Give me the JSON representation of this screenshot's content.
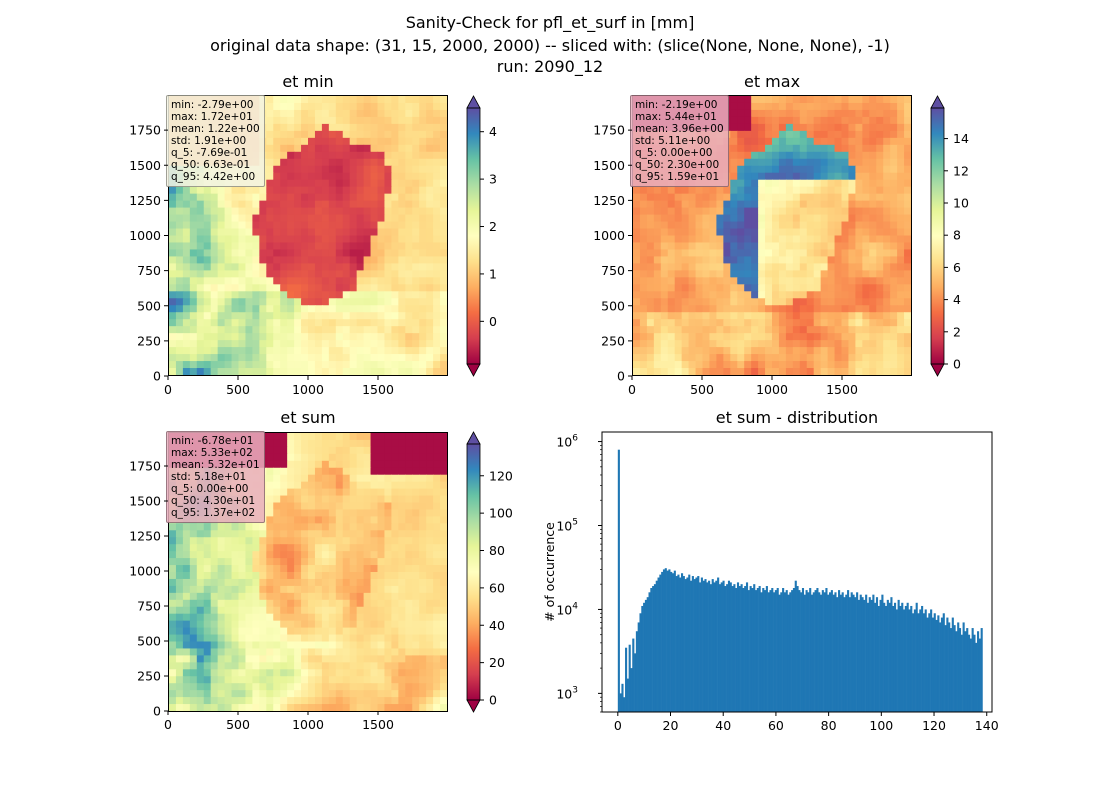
{
  "suptitle": {
    "line1": "Sanity-Check for pfl_et_surf in [mm]",
    "line2": "original data shape: (31, 15, 2000, 2000) -- sliced with: (slice(None, None, None), -1)",
    "line3": "run: 2090_12"
  },
  "colors": {
    "spectral": [
      "#9e0142",
      "#d53e4f",
      "#f46d43",
      "#fdae61",
      "#fee08b",
      "#ffffbf",
      "#e6f598",
      "#abdda4",
      "#66c2a5",
      "#3288bd",
      "#5e4fa2"
    ],
    "hist_bar": "#1f77b4",
    "statbox_light": "#f3f3e3",
    "statbox_pink": "#e9aebd"
  },
  "chart_data": [
    {
      "type": "heatmap",
      "title": "et min",
      "xlim": [
        0,
        2000
      ],
      "ylim": [
        0,
        2000
      ],
      "x_ticks": [
        "0",
        "500",
        "1000",
        "1500"
      ],
      "y_ticks": [
        "0",
        "250",
        "500",
        "750",
        "1000",
        "1250",
        "1500",
        "1750"
      ],
      "colorbar": {
        "range": [
          -0.9,
          4.5
        ],
        "ticks": [
          "0",
          "1",
          "2",
          "3",
          "4"
        ],
        "tick_values": [
          0,
          1,
          2,
          3,
          4
        ],
        "extend": "both"
      },
      "stats": [
        "min: -2.79e+00",
        "max: 1.72e+01",
        "mean: 1.22e+00",
        "std: 1.91e+00",
        "q_5: -7.69e-01",
        "q_50: 6.63e-01",
        "q_95: 4.42e+00"
      ]
    },
    {
      "type": "heatmap",
      "title": "et max",
      "xlim": [
        0,
        2000
      ],
      "ylim": [
        0,
        2000
      ],
      "x_ticks": [
        "0",
        "500",
        "1000",
        "1500"
      ],
      "y_ticks": [
        "0",
        "250",
        "500",
        "750",
        "1000",
        "1250",
        "1500",
        "1750"
      ],
      "colorbar": {
        "range": [
          0,
          15.9
        ],
        "ticks": [
          "0",
          "2",
          "4",
          "6",
          "8",
          "10",
          "12",
          "14"
        ],
        "tick_values": [
          0,
          2,
          4,
          6,
          8,
          10,
          12,
          14
        ],
        "extend": "both"
      },
      "stats": [
        "min: -2.19e+00",
        "max: 5.44e+01",
        "mean: 3.96e+00",
        "std: 5.11e+00",
        "q_5: 0.00e+00",
        "q_50: 2.30e+00",
        "q_95: 1.59e+01"
      ]
    },
    {
      "type": "heatmap",
      "title": "et sum",
      "xlim": [
        0,
        2000
      ],
      "ylim": [
        0,
        2000
      ],
      "x_ticks": [
        "0",
        "500",
        "1000",
        "1500"
      ],
      "y_ticks": [
        "0",
        "250",
        "500",
        "750",
        "1000",
        "1250",
        "1500",
        "1750"
      ],
      "colorbar": {
        "range": [
          0,
          137
        ],
        "ticks": [
          "0",
          "20",
          "40",
          "60",
          "80",
          "100",
          "120"
        ],
        "tick_values": [
          0,
          20,
          40,
          60,
          80,
          100,
          120
        ],
        "extend": "both"
      },
      "stats": [
        "min: -6.78e+01",
        "max: 5.33e+02",
        "mean: 5.32e+01",
        "std: 5.18e+01",
        "q_5: 0.00e+00",
        "q_50: 4.30e+01",
        "q_95: 1.37e+02"
      ]
    },
    {
      "type": "bar",
      "title": "et sum - distribution",
      "xlabel": "",
      "ylabel": "# of occurrence",
      "xlim": [
        -6,
        142
      ],
      "x_ticks": [
        "0",
        "20",
        "40",
        "60",
        "80",
        "100",
        "120",
        "140"
      ],
      "x_tick_values": [
        0,
        20,
        40,
        60,
        80,
        100,
        120,
        140
      ],
      "y_scale": "log",
      "ylim": [
        600,
        1300000
      ],
      "y_ticks": [
        "10^3",
        "10^4",
        "10^5",
        "10^6"
      ],
      "bin_start": 0,
      "bin_width": 0.685,
      "values": [
        800000,
        1000,
        1300,
        900,
        3500,
        1500,
        3800,
        2000,
        4500,
        3000,
        5500,
        7000,
        9000,
        11000,
        12000,
        13000,
        14000,
        16000,
        18000,
        19000,
        20000,
        22000,
        24000,
        26000,
        28000,
        30000,
        31000,
        29000,
        30000,
        28000,
        27000,
        29000,
        25000,
        26000,
        24000,
        27000,
        25000,
        23000,
        24000,
        26000,
        22000,
        25000,
        23000,
        24000,
        25000,
        21000,
        24000,
        22000,
        23000,
        21000,
        22000,
        20000,
        23000,
        21000,
        22000,
        24000,
        20000,
        21000,
        22000,
        19000,
        20000,
        22000,
        21000,
        19000,
        20000,
        18000,
        21000,
        19000,
        20000,
        18000,
        19000,
        21000,
        17000,
        19000,
        18000,
        20000,
        17000,
        18000,
        19000,
        16000,
        18000,
        17000,
        19000,
        16000,
        17000,
        18000,
        16000,
        17000,
        18000,
        15000,
        16000,
        18000,
        16000,
        17000,
        15000,
        16000,
        17000,
        18000,
        22000,
        19000,
        17000,
        16000,
        18000,
        15000,
        17000,
        16000,
        18000,
        15000,
        16000,
        17000,
        18000,
        16000,
        15000,
        17000,
        16000,
        18000,
        15000,
        16000,
        17000,
        15000,
        16000,
        14000,
        17000,
        15000,
        16000,
        14000,
        15000,
        17000,
        14000,
        16000,
        15000,
        14000,
        16000,
        13000,
        15000,
        14000,
        13000,
        15000,
        12000,
        14000,
        13000,
        15000,
        12000,
        14000,
        11000,
        13000,
        15000,
        12000,
        11000,
        13000,
        12000,
        14000,
        11000,
        12000,
        10000,
        13000,
        11000,
        12000,
        10000,
        11000,
        12000,
        10000,
        11000,
        9000,
        10000,
        12000,
        9000,
        10000,
        11000,
        9000,
        10000,
        8000,
        9000,
        10000,
        8000,
        9000,
        7500,
        8500,
        7000,
        8000,
        9000,
        6500,
        8000,
        7000,
        6000,
        8000,
        6500,
        5500,
        7000,
        6000,
        5000,
        7000,
        5500,
        6000,
        5000,
        4500,
        6000,
        5000,
        4000,
        5500,
        4500,
        6000
      ]
    }
  ]
}
